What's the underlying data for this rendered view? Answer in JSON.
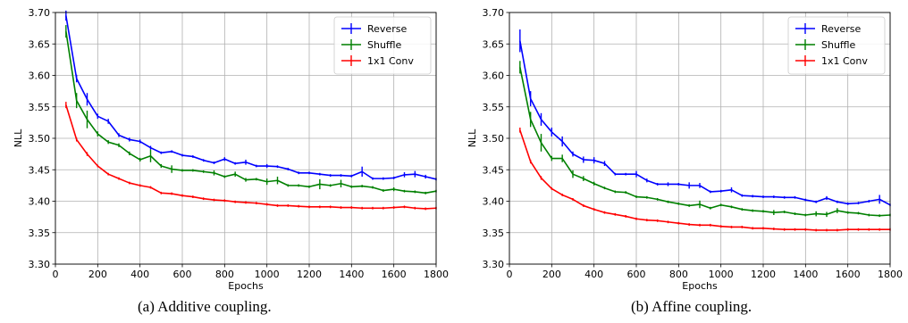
{
  "chart_data": [
    {
      "type": "line",
      "caption": "(a) Additive coupling.",
      "xlabel": "Epochs",
      "ylabel": "NLL",
      "xlim": [
        0,
        1800
      ],
      "ylim": [
        3.3,
        3.7
      ],
      "xticks": [
        "0",
        "200",
        "400",
        "600",
        "800",
        "1000",
        "1200",
        "1400",
        "1600",
        "1800"
      ],
      "yticks": [
        "3.30",
        "3.35",
        "3.40",
        "3.45",
        "3.50",
        "3.55",
        "3.60",
        "3.65",
        "3.70"
      ],
      "grid": true,
      "legend_position": "top-right",
      "x": [
        50,
        100,
        150,
        200,
        250,
        300,
        350,
        400,
        450,
        500,
        550,
        600,
        650,
        700,
        750,
        800,
        850,
        900,
        950,
        1000,
        1050,
        1100,
        1150,
        1200,
        1250,
        1300,
        1350,
        1400,
        1450,
        1500,
        1550,
        1600,
        1650,
        1700,
        1750,
        1800
      ],
      "series": [
        {
          "name": "Reverse",
          "color": "#0000ff",
          "values": [
            3.695,
            3.595,
            3.562,
            3.535,
            3.527,
            3.505,
            3.498,
            3.495,
            3.485,
            3.477,
            3.479,
            3.473,
            3.471,
            3.465,
            3.461,
            3.467,
            3.46,
            3.462,
            3.456,
            3.456,
            3.455,
            3.451,
            3.445,
            3.445,
            3.443,
            3.441,
            3.441,
            3.44,
            3.447,
            3.436,
            3.436,
            3.437,
            3.442,
            3.443,
            3.439,
            3.435
          ],
          "errors": [
            0.008,
            0.006,
            0.01,
            0.004,
            0.004,
            0.003,
            0.003,
            0.003,
            0.003,
            0.002,
            0.002,
            0.002,
            0.002,
            0.002,
            0.002,
            0.003,
            0.002,
            0.004,
            0.002,
            0.003,
            0.002,
            0.002,
            0.002,
            0.002,
            0.002,
            0.002,
            0.002,
            0.002,
            0.008,
            0.002,
            0.002,
            0.002,
            0.004,
            0.005,
            0.003,
            0.002
          ]
        },
        {
          "name": "Shuffle",
          "color": "#008000",
          "values": [
            3.67,
            3.56,
            3.53,
            3.507,
            3.494,
            3.489,
            3.476,
            3.466,
            3.472,
            3.456,
            3.451,
            3.449,
            3.449,
            3.447,
            3.445,
            3.439,
            3.443,
            3.434,
            3.435,
            3.431,
            3.433,
            3.425,
            3.425,
            3.423,
            3.427,
            3.425,
            3.428,
            3.423,
            3.424,
            3.422,
            3.417,
            3.419,
            3.416,
            3.415,
            3.413,
            3.416
          ],
          "errors": [
            0.01,
            0.012,
            0.014,
            0.004,
            0.003,
            0.003,
            0.003,
            0.003,
            0.01,
            0.003,
            0.006,
            0.002,
            0.002,
            0.002,
            0.004,
            0.002,
            0.004,
            0.003,
            0.002,
            0.005,
            0.006,
            0.002,
            0.002,
            0.002,
            0.008,
            0.002,
            0.006,
            0.002,
            0.002,
            0.002,
            0.002,
            0.003,
            0.002,
            0.002,
            0.002,
            0.002
          ]
        },
        {
          "name": "1x1 Conv",
          "color": "#ff0000",
          "values": [
            3.553,
            3.498,
            3.475,
            3.456,
            3.443,
            3.436,
            3.429,
            3.425,
            3.422,
            3.413,
            3.412,
            3.409,
            3.407,
            3.404,
            3.402,
            3.401,
            3.399,
            3.398,
            3.397,
            3.395,
            3.393,
            3.393,
            3.392,
            3.391,
            3.391,
            3.391,
            3.39,
            3.39,
            3.389,
            3.389,
            3.389,
            3.39,
            3.391,
            3.389,
            3.388,
            3.389
          ],
          "errors": [
            0.005,
            0.003,
            0.003,
            0.002,
            0.002,
            0.002,
            0.002,
            0.002,
            0.002,
            0.002,
            0.002,
            0.002,
            0.002,
            0.002,
            0.002,
            0.002,
            0.002,
            0.002,
            0.002,
            0.002,
            0.002,
            0.002,
            0.002,
            0.002,
            0.002,
            0.002,
            0.002,
            0.002,
            0.002,
            0.002,
            0.002,
            0.002,
            0.002,
            0.002,
            0.002,
            0.002
          ]
        }
      ]
    },
    {
      "type": "line",
      "caption": "(b) Affine coupling.",
      "xlabel": "Epochs",
      "ylabel": "NLL",
      "xlim": [
        0,
        1800
      ],
      "ylim": [
        3.3,
        3.7
      ],
      "xticks": [
        "0",
        "200",
        "400",
        "600",
        "800",
        "1000",
        "1200",
        "1400",
        "1600",
        "1800"
      ],
      "yticks": [
        "3.30",
        "3.35",
        "3.40",
        "3.45",
        "3.50",
        "3.55",
        "3.60",
        "3.65",
        "3.70"
      ],
      "grid": true,
      "legend_position": "top-right",
      "x": [
        50,
        100,
        150,
        200,
        250,
        300,
        350,
        400,
        450,
        500,
        550,
        600,
        650,
        700,
        750,
        800,
        850,
        900,
        950,
        1000,
        1050,
        1100,
        1150,
        1200,
        1250,
        1300,
        1350,
        1400,
        1450,
        1500,
        1550,
        1600,
        1650,
        1700,
        1750,
        1800
      ],
      "series": [
        {
          "name": "Reverse",
          "color": "#0000ff",
          "values": [
            3.655,
            3.563,
            3.53,
            3.51,
            3.495,
            3.475,
            3.466,
            3.465,
            3.46,
            3.443,
            3.443,
            3.443,
            3.433,
            3.427,
            3.427,
            3.427,
            3.425,
            3.425,
            3.415,
            3.416,
            3.418,
            3.409,
            3.408,
            3.407,
            3.407,
            3.406,
            3.406,
            3.402,
            3.399,
            3.405,
            3.399,
            3.396,
            3.397,
            3.4,
            3.403,
            3.394
          ],
          "errors": [
            0.018,
            0.012,
            0.01,
            0.007,
            0.008,
            0.004,
            0.005,
            0.005,
            0.004,
            0.002,
            0.002,
            0.005,
            0.003,
            0.002,
            0.003,
            0.002,
            0.005,
            0.004,
            0.002,
            0.002,
            0.004,
            0.002,
            0.002,
            0.002,
            0.002,
            0.002,
            0.002,
            0.002,
            0.002,
            0.003,
            0.002,
            0.002,
            0.002,
            0.002,
            0.007,
            0.002
          ]
        },
        {
          "name": "Shuffle",
          "color": "#008000",
          "values": [
            3.613,
            3.53,
            3.493,
            3.468,
            3.468,
            3.443,
            3.436,
            3.428,
            3.421,
            3.415,
            3.414,
            3.407,
            3.406,
            3.403,
            3.399,
            3.396,
            3.393,
            3.395,
            3.389,
            3.394,
            3.391,
            3.387,
            3.385,
            3.384,
            3.382,
            3.383,
            3.38,
            3.378,
            3.38,
            3.379,
            3.385,
            3.382,
            3.381,
            3.378,
            3.377,
            3.378
          ],
          "errors": [
            0.01,
            0.012,
            0.014,
            0.004,
            0.006,
            0.006,
            0.004,
            0.003,
            0.002,
            0.002,
            0.002,
            0.002,
            0.002,
            0.002,
            0.002,
            0.002,
            0.002,
            0.006,
            0.002,
            0.002,
            0.002,
            0.002,
            0.002,
            0.002,
            0.004,
            0.002,
            0.002,
            0.002,
            0.004,
            0.004,
            0.004,
            0.002,
            0.002,
            0.002,
            0.002,
            0.002
          ]
        },
        {
          "name": "1x1 Conv",
          "color": "#ff0000",
          "values": [
            3.513,
            3.463,
            3.437,
            3.42,
            3.41,
            3.403,
            3.393,
            3.387,
            3.382,
            3.379,
            3.376,
            3.372,
            3.37,
            3.369,
            3.367,
            3.365,
            3.363,
            3.362,
            3.362,
            3.36,
            3.359,
            3.359,
            3.357,
            3.357,
            3.356,
            3.355,
            3.355,
            3.355,
            3.354,
            3.354,
            3.354,
            3.355,
            3.355,
            3.355,
            3.355,
            3.355
          ],
          "errors": [
            0.004,
            0.003,
            0.003,
            0.002,
            0.002,
            0.002,
            0.002,
            0.002,
            0.002,
            0.002,
            0.002,
            0.002,
            0.002,
            0.002,
            0.002,
            0.002,
            0.002,
            0.002,
            0.002,
            0.002,
            0.002,
            0.002,
            0.002,
            0.002,
            0.002,
            0.002,
            0.002,
            0.002,
            0.002,
            0.002,
            0.002,
            0.002,
            0.002,
            0.002,
            0.002,
            0.002
          ]
        }
      ]
    }
  ]
}
